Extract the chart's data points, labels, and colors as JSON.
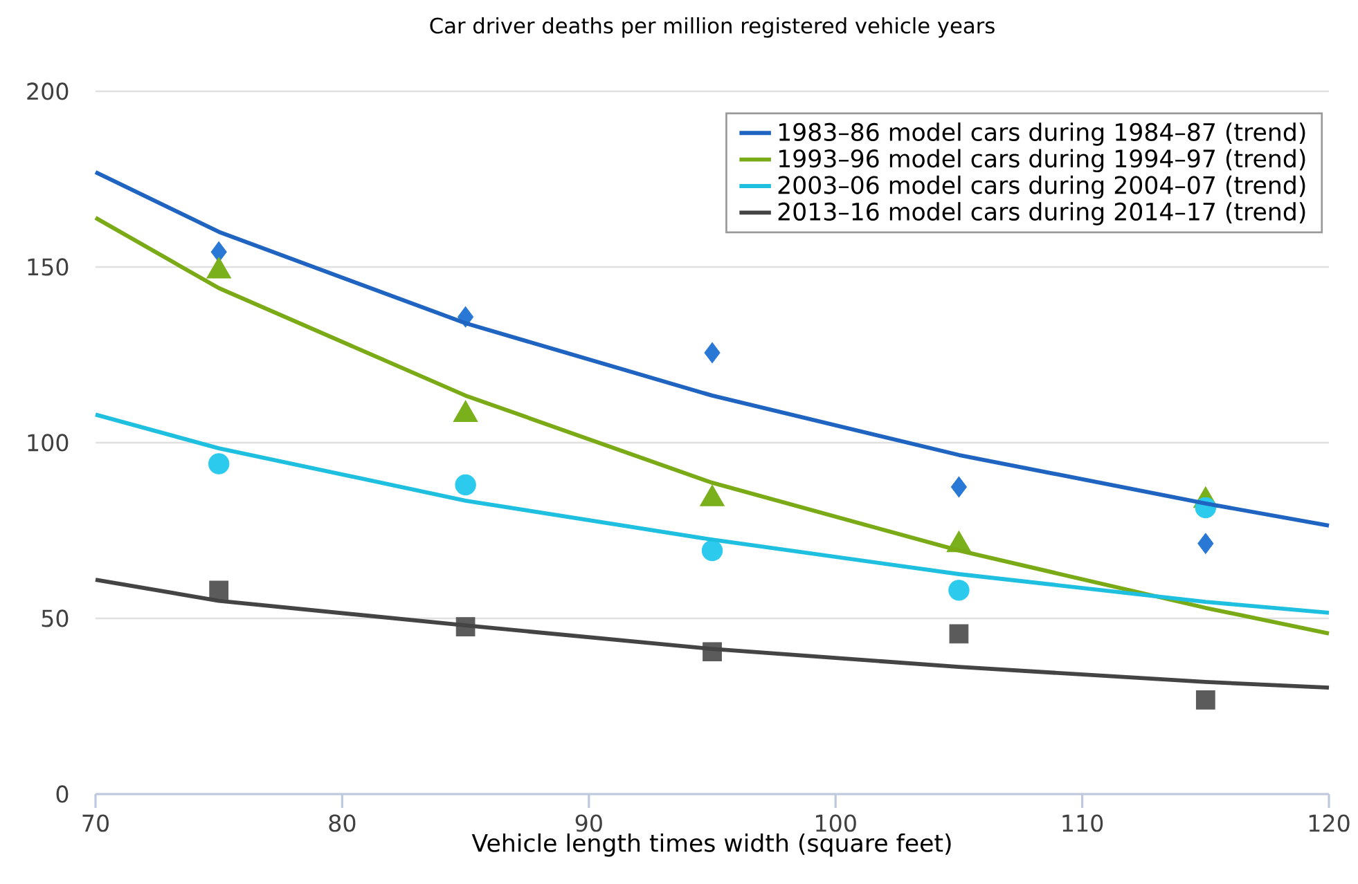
{
  "chart_data": {
    "type": "line",
    "title": "Car driver deaths per million registered vehicle years",
    "xlabel": "Vehicle length times width (square feet)",
    "xlim": [
      70,
      120
    ],
    "xticks": [
      70,
      80,
      90,
      100,
      110,
      120
    ],
    "ylim": [
      0,
      200
    ],
    "yticks": [
      0,
      50,
      100,
      150,
      200
    ],
    "grid": "y",
    "legend": "top right",
    "series": [
      {
        "name": "1983–86 model cars during 1984–87 (trend)",
        "color": "#1f64c0",
        "x": [
          70,
          75,
          85,
          95,
          105,
          115,
          120
        ],
        "values": [
          177,
          160,
          134,
          113.4,
          96.5,
          82.7,
          76.4
        ]
      },
      {
        "name": "1993–96 model cars during 1994–97 (trend)",
        "color": "#7aab17",
        "x": [
          70,
          75,
          85,
          95,
          105,
          115,
          120
        ],
        "values": [
          164,
          144,
          113.4,
          88.6,
          69.3,
          53,
          45.7
        ]
      },
      {
        "name": "2003–06 model cars during 2004–07 (trend)",
        "color": "#1fbfe0",
        "x": [
          70,
          75,
          85,
          95,
          105,
          115,
          120
        ],
        "values": [
          108,
          98.4,
          83.5,
          72.4,
          62.6,
          54.7,
          51.6
        ]
      },
      {
        "name": "2013–16 model cars during 2014–17 (trend)",
        "color": "#444444",
        "x": [
          70,
          75,
          85,
          95,
          105,
          115,
          120
        ],
        "values": [
          61,
          55,
          48,
          41.3,
          36.2,
          31.9,
          30.3
        ]
      },
      {
        "type": "scatter",
        "marker": "diamond",
        "color": "#2a78d6",
        "x": [
          75,
          85,
          95,
          105,
          115
        ],
        "values": [
          154.3,
          135.8,
          125.6,
          87.4,
          71.3
        ]
      },
      {
        "type": "scatter",
        "marker": "triangle",
        "color": "#7ab01c",
        "x": [
          75,
          85,
          95,
          105,
          115
        ],
        "values": [
          148.8,
          108,
          84,
          70.9,
          83.5
        ]
      },
      {
        "type": "scatter",
        "marker": "circle",
        "color": "#2ccbee",
        "x": [
          75,
          85,
          95,
          105,
          115
        ],
        "values": [
          94,
          88,
          69.3,
          58,
          81.5
        ]
      },
      {
        "type": "scatter",
        "marker": "square",
        "color": "#5b5b5b",
        "x": [
          75,
          85,
          95,
          105,
          115
        ],
        "values": [
          58,
          47.6,
          40.5,
          45.6,
          26.8
        ]
      }
    ]
  }
}
